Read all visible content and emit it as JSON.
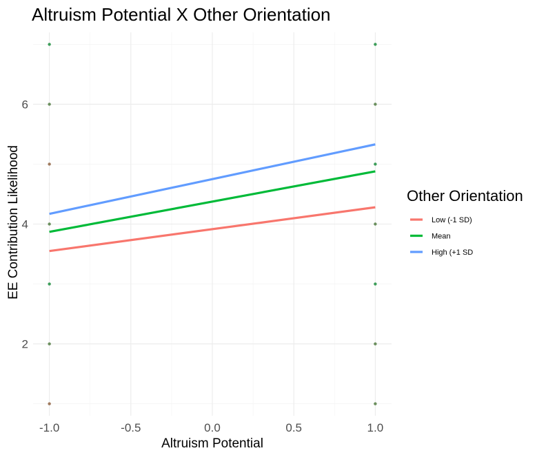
{
  "chart_data": {
    "type": "line",
    "title": "Altruism Potential X Other Orientation",
    "xlabel": "Altruism Potential",
    "ylabel": "EE Contribution Likelihood",
    "xlim": [
      -1.1,
      1.1
    ],
    "ylim": [
      0.8,
      7.2
    ],
    "x_ticks": [
      -1.0,
      -0.5,
      0.0,
      0.5,
      1.0
    ],
    "x_tick_labels": [
      "-1.0",
      "-0.5",
      "0.0",
      "0.5",
      "1.0"
    ],
    "y_ticks": [
      2,
      4,
      6
    ],
    "y_tick_labels": [
      "2",
      "4",
      "6"
    ],
    "y_minor_ticks": [
      1,
      3,
      5,
      7
    ],
    "grid": true,
    "legend": {
      "title": "Other Orientation",
      "position": "right"
    },
    "series": [
      {
        "name": "Low (-1 SD)",
        "color": "#F8766D",
        "x": [
          -1.0,
          1.0
        ],
        "y": [
          3.55,
          4.28
        ]
      },
      {
        "name": "Mean",
        "color": "#00BA38",
        "x": [
          -1.0,
          1.0
        ],
        "y": [
          3.87,
          4.88
        ]
      },
      {
        "name": "High (+1 SD",
        "color": "#619CFF",
        "x": [
          -1.0,
          1.0
        ],
        "y": [
          4.17,
          5.33
        ]
      }
    ],
    "points": {
      "colors": [
        "#6b8f5e",
        "#3d9e5a",
        "#a07a5e"
      ],
      "data": [
        {
          "x": -1.0,
          "y": 1,
          "c": 2
        },
        {
          "x": -1.0,
          "y": 2,
          "c": 0
        },
        {
          "x": -1.0,
          "y": 3,
          "c": 1
        },
        {
          "x": -1.0,
          "y": 4,
          "c": 0
        },
        {
          "x": -1.0,
          "y": 5,
          "c": 2
        },
        {
          "x": -1.0,
          "y": 6,
          "c": 0
        },
        {
          "x": -1.0,
          "y": 7,
          "c": 1
        },
        {
          "x": 1.0,
          "y": 1,
          "c": 0
        },
        {
          "x": 1.0,
          "y": 2,
          "c": 0
        },
        {
          "x": 1.0,
          "y": 3,
          "c": 1
        },
        {
          "x": 1.0,
          "y": 4,
          "c": 0
        },
        {
          "x": 1.0,
          "y": 5,
          "c": 1
        },
        {
          "x": 1.0,
          "y": 6,
          "c": 0
        },
        {
          "x": 1.0,
          "y": 7,
          "c": 1
        }
      ]
    }
  }
}
